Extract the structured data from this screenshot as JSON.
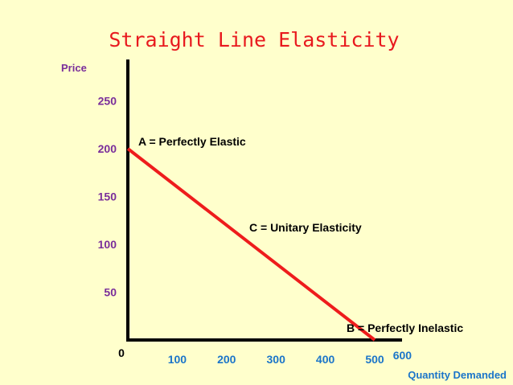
{
  "chart_data": {
    "type": "line",
    "title": "Straight Line Elasticity",
    "ylabel": "Price",
    "xlabel": "Quantity Demanded",
    "origin_label": "0",
    "x_ticks": [
      100,
      200,
      300,
      400,
      500,
      600
    ],
    "y_ticks": [
      50,
      100,
      150,
      200,
      250
    ],
    "xlim": [
      0,
      600
    ],
    "ylim": [
      0,
      250
    ],
    "series": [
      {
        "x": [
          0,
          500
        ],
        "y": [
          200,
          0
        ],
        "color": "#EE1C1C"
      }
    ],
    "annotations": [
      {
        "text": "A  = Perfectly Elastic",
        "x": 0,
        "y": 200
      },
      {
        "text": "C  = Unitary Elasticity",
        "x": 250,
        "y": 100
      },
      {
        "text": "B  = Perfectly Inelastic",
        "x": 500,
        "y": 0
      }
    ],
    "grid": false,
    "colors": {
      "background": "#FFFFCC",
      "title": "#E8191E",
      "ylabel": "#7A2E9A",
      "xlabel": "#1B75C9",
      "axis": "#000000"
    }
  }
}
